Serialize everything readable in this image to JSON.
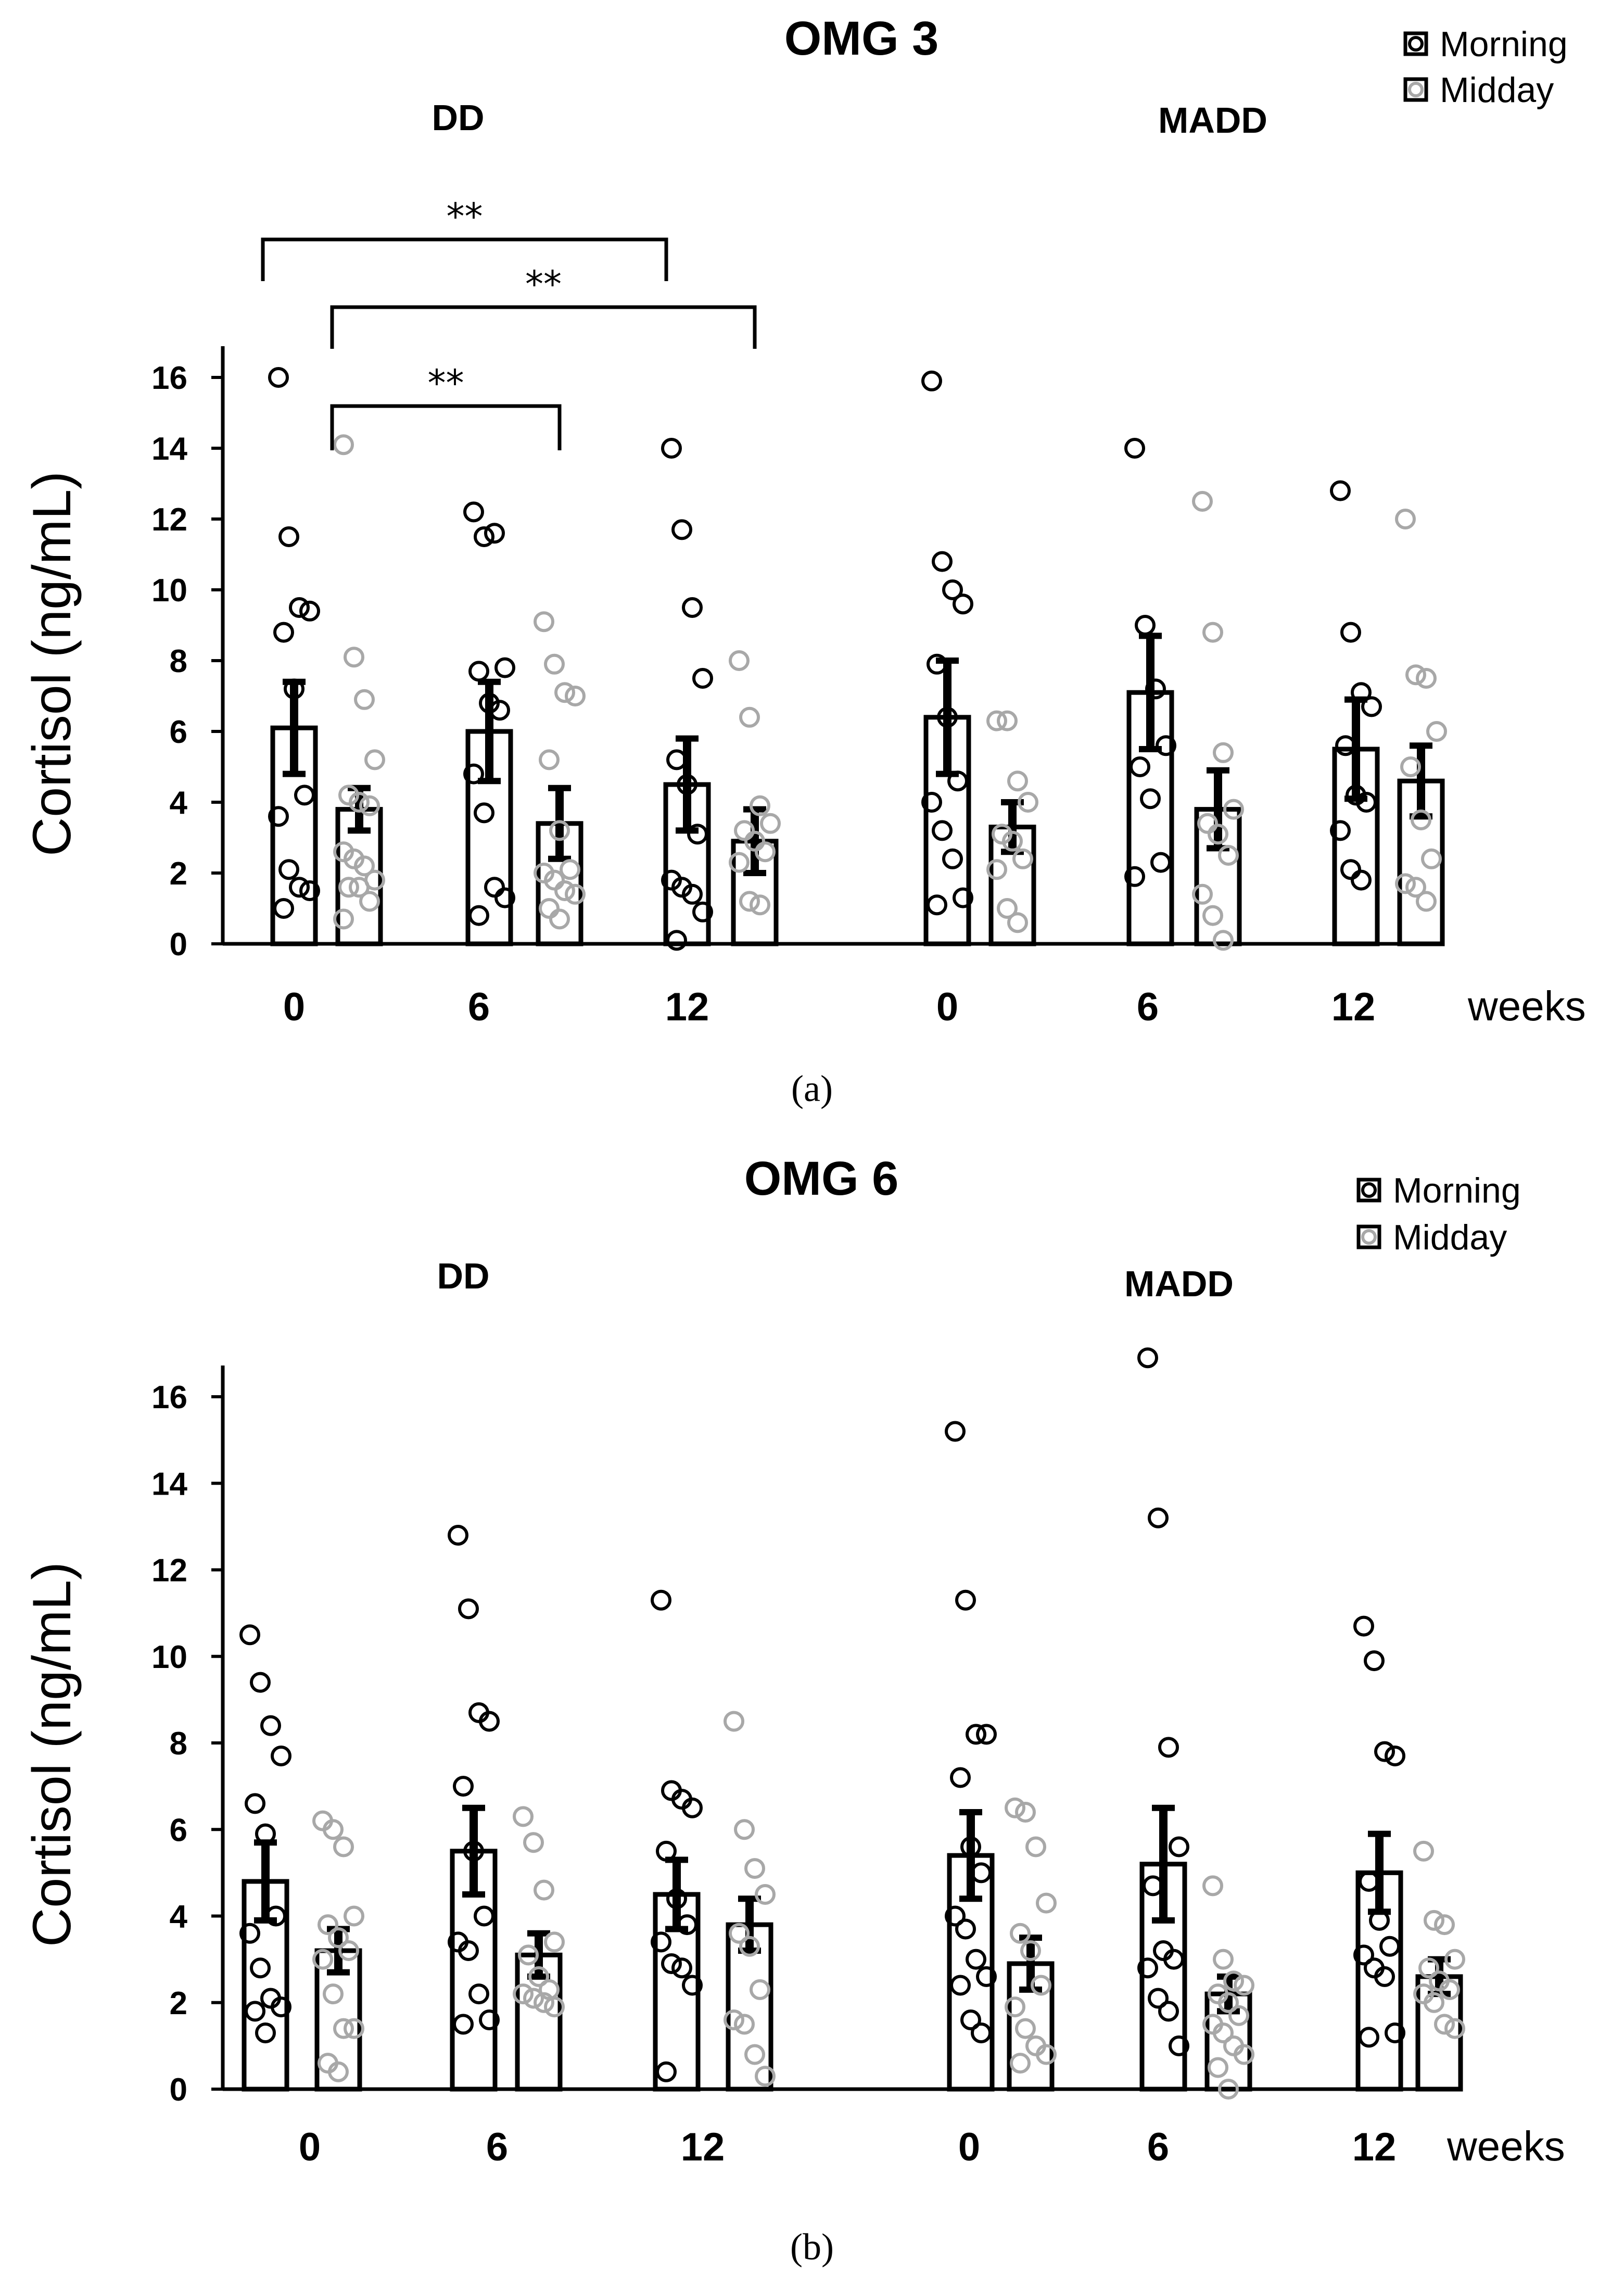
{
  "chart_data": [
    {
      "type": "bar",
      "panel": "a",
      "caption": "(a)",
      "title": "OMG 3",
      "ylabel": "Cortisol (ng/mL)",
      "xunit": "weeks",
      "ylim": [
        0,
        16
      ],
      "yticks": [
        0,
        2,
        4,
        6,
        8,
        10,
        12,
        14,
        16
      ],
      "legend": {
        "position": "top-right",
        "entries": [
          {
            "name": "Morning",
            "color": "#000000"
          },
          {
            "name": "Midday",
            "color": "#a8a8a8"
          }
        ]
      },
      "groups": [
        {
          "label": "DD",
          "categories": [
            {
              "week": "0",
              "morning": {
                "mean": 6.1,
                "error": 1.3,
                "points": [
                  16.0,
                  11.5,
                  9.5,
                  9.4,
                  8.8,
                  7.2,
                  4.2,
                  3.6,
                  2.1,
                  1.6,
                  1.5,
                  1.0
                ]
              },
              "midday": {
                "mean": 3.8,
                "error": 0.6,
                "points": [
                  14.1,
                  8.1,
                  6.9,
                  5.2,
                  4.2,
                  4.0,
                  3.9,
                  2.6,
                  2.4,
                  2.2,
                  1.8,
                  1.6,
                  1.6,
                  1.2,
                  0.7
                ]
              }
            },
            {
              "week": "6",
              "morning": {
                "mean": 6.0,
                "error": 1.4,
                "points": [
                  12.2,
                  11.5,
                  11.6,
                  7.8,
                  7.7,
                  6.8,
                  6.6,
                  4.8,
                  3.7,
                  1.6,
                  1.3,
                  0.8
                ]
              },
              "midday": {
                "mean": 3.4,
                "error": 1.0,
                "points": [
                  9.1,
                  7.9,
                  7.1,
                  7.0,
                  5.2,
                  3.2,
                  2.1,
                  2.0,
                  1.8,
                  1.5,
                  1.4,
                  1.0,
                  0.7
                ]
              }
            },
            {
              "week": "12",
              "morning": {
                "mean": 4.5,
                "error": 1.3,
                "points": [
                  14.0,
                  11.7,
                  9.5,
                  7.5,
                  5.2,
                  4.5,
                  3.1,
                  1.8,
                  1.6,
                  1.4,
                  0.9,
                  0.1
                ]
              },
              "midday": {
                "mean": 2.9,
                "error": 0.9,
                "points": [
                  8.0,
                  6.4,
                  3.9,
                  3.4,
                  3.2,
                  2.9,
                  2.6,
                  2.3,
                  1.2,
                  1.1
                ]
              }
            }
          ]
        },
        {
          "label": "MADD",
          "categories": [
            {
              "week": "0",
              "morning": {
                "mean": 6.4,
                "error": 1.6,
                "points": [
                  15.9,
                  10.8,
                  10.0,
                  9.6,
                  7.9,
                  6.4,
                  4.6,
                  4.0,
                  3.2,
                  2.4,
                  1.3,
                  1.1
                ]
              },
              "midday": {
                "mean": 3.3,
                "error": 0.7,
                "points": [
                  6.3,
                  6.3,
                  4.6,
                  4.0,
                  3.1,
                  2.9,
                  2.4,
                  2.1,
                  1.0,
                  0.6
                ]
              }
            },
            {
              "week": "6",
              "morning": {
                "mean": 7.1,
                "error": 1.6,
                "points": [
                  14.0,
                  9.0,
                  7.2,
                  5.6,
                  5.0,
                  4.1,
                  2.3,
                  1.9
                ]
              },
              "midday": {
                "mean": 3.8,
                "error": 1.1,
                "points": [
                  12.5,
                  8.8,
                  5.4,
                  3.8,
                  3.4,
                  3.1,
                  2.5,
                  1.4,
                  0.8,
                  0.1
                ]
              }
            },
            {
              "week": "12",
              "morning": {
                "mean": 5.5,
                "error": 1.4,
                "points": [
                  12.8,
                  8.8,
                  7.1,
                  6.7,
                  5.6,
                  4.2,
                  4.0,
                  3.2,
                  2.1,
                  1.8
                ]
              },
              "midday": {
                "mean": 4.6,
                "error": 1.0,
                "points": [
                  12.0,
                  7.6,
                  7.5,
                  6.0,
                  5.0,
                  3.5,
                  2.4,
                  1.7,
                  1.6,
                  1.2
                ]
              }
            }
          ]
        }
      ],
      "annotations": [
        {
          "text": "**",
          "from": {
            "group": 0,
            "category": 0,
            "series": "morning"
          },
          "to": {
            "group": 0,
            "category": 2,
            "series": "morning"
          }
        },
        {
          "text": "**",
          "from": {
            "group": 0,
            "category": 0,
            "series": "midday"
          },
          "to": {
            "group": 0,
            "category": 2,
            "series": "midday"
          }
        },
        {
          "text": "**",
          "from": {
            "group": 0,
            "category": 0,
            "series": "midday"
          },
          "to": {
            "group": 0,
            "category": 1,
            "series": "midday"
          }
        }
      ]
    },
    {
      "type": "bar",
      "panel": "b",
      "caption": "(b)",
      "title": "OMG 6",
      "ylabel": "Cortisol (ng/mL)",
      "xunit": "weeks",
      "ylim": [
        0,
        16
      ],
      "yticks": [
        0,
        2,
        4,
        6,
        8,
        10,
        12,
        14,
        16
      ],
      "legend": {
        "position": "top-right",
        "entries": [
          {
            "name": "Morning",
            "color": "#000000"
          },
          {
            "name": "Midday",
            "color": "#a8a8a8"
          }
        ]
      },
      "groups": [
        {
          "label": "DD",
          "categories": [
            {
              "week": "0",
              "morning": {
                "mean": 4.8,
                "error": 0.9,
                "points": [
                  10.5,
                  9.4,
                  8.4,
                  7.7,
                  6.6,
                  5.9,
                  4.0,
                  3.6,
                  2.8,
                  2.1,
                  1.9,
                  1.8,
                  1.3
                ]
              },
              "midday": {
                "mean": 3.2,
                "error": 0.5,
                "points": [
                  6.2,
                  6.0,
                  5.6,
                  4.0,
                  3.8,
                  3.5,
                  3.2,
                  3.0,
                  2.2,
                  1.4,
                  1.4,
                  0.6,
                  0.4
                ]
              }
            },
            {
              "week": "6",
              "morning": {
                "mean": 5.5,
                "error": 1.0,
                "points": [
                  12.8,
                  11.1,
                  8.7,
                  8.5,
                  7.0,
                  5.5,
                  4.0,
                  3.4,
                  3.2,
                  2.2,
                  1.6,
                  1.5
                ]
              },
              "midday": {
                "mean": 3.1,
                "error": 0.5,
                "points": [
                  6.3,
                  5.7,
                  4.6,
                  3.4,
                  3.1,
                  2.6,
                  2.3,
                  2.2,
                  2.1,
                  2.0,
                  1.9
                ]
              }
            },
            {
              "week": "12",
              "morning": {
                "mean": 4.5,
                "error": 0.8,
                "points": [
                  11.3,
                  6.9,
                  6.7,
                  6.5,
                  5.5,
                  4.4,
                  3.8,
                  3.4,
                  2.9,
                  2.8,
                  2.4,
                  0.4
                ]
              },
              "midday": {
                "mean": 3.8,
                "error": 0.6,
                "points": [
                  8.5,
                  6.0,
                  5.1,
                  4.5,
                  3.6,
                  3.3,
                  2.3,
                  1.6,
                  1.5,
                  0.8,
                  0.3
                ]
              }
            }
          ]
        },
        {
          "label": "MADD",
          "categories": [
            {
              "week": "0",
              "morning": {
                "mean": 5.4,
                "error": 1.0,
                "points": [
                  15.2,
                  11.3,
                  8.2,
                  8.2,
                  7.2,
                  5.6,
                  5.0,
                  4.0,
                  3.7,
                  3.0,
                  2.6,
                  2.4,
                  1.6,
                  1.3
                ]
              },
              "midday": {
                "mean": 2.9,
                "error": 0.6,
                "points": [
                  6.5,
                  6.4,
                  5.6,
                  4.3,
                  3.6,
                  3.2,
                  2.4,
                  1.9,
                  1.4,
                  1.0,
                  0.8,
                  0.6
                ]
              }
            },
            {
              "week": "6",
              "morning": {
                "mean": 5.2,
                "error": 1.3,
                "points": [
                  16.9,
                  13.2,
                  7.9,
                  5.6,
                  4.7,
                  3.2,
                  3.0,
                  2.8,
                  2.1,
                  1.8,
                  1.0
                ]
              },
              "midday": {
                "mean": 2.2,
                "error": 0.4,
                "points": [
                  4.7,
                  3.0,
                  2.5,
                  2.4,
                  2.2,
                  2.0,
                  1.7,
                  1.5,
                  1.3,
                  1.0,
                  0.8,
                  0.5,
                  0.0
                ]
              }
            },
            {
              "week": "12",
              "morning": {
                "mean": 5.0,
                "error": 0.9,
                "points": [
                  10.7,
                  9.9,
                  7.8,
                  7.7,
                  4.8,
                  3.9,
                  3.3,
                  3.1,
                  2.8,
                  2.6,
                  1.3,
                  1.2
                ]
              },
              "midday": {
                "mean": 2.6,
                "error": 0.4,
                "points": [
                  5.5,
                  3.9,
                  3.8,
                  3.0,
                  2.8,
                  2.5,
                  2.3,
                  2.2,
                  2.0,
                  1.5,
                  1.4
                ]
              }
            }
          ]
        }
      ],
      "annotations": []
    }
  ]
}
